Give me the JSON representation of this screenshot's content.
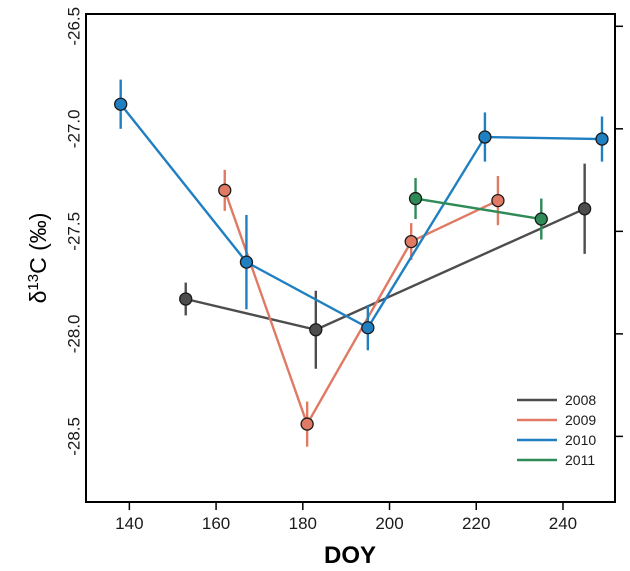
{
  "chart_data": {
    "type": "line",
    "xlabel": "DOY",
    "ylabel": {
      "prefix": "δ",
      "sup": "13",
      "suffix": "C (‰)"
    },
    "xlim": [
      130,
      252
    ],
    "ylim": [
      -28.82,
      -26.44
    ],
    "x_ticks": [
      140,
      160,
      180,
      200,
      220,
      240
    ],
    "x_tick_labels": [
      "140",
      "160",
      "180",
      "200",
      "220",
      "240"
    ],
    "y_ticks": [
      -26.5,
      -27.0,
      -27.5,
      -28.0,
      -28.5
    ],
    "y_tick_labels": [
      "-26.5",
      "-27.0",
      "-27.5",
      "-28.0",
      "-28.5"
    ],
    "grid": false,
    "legend_position": "bottom-right",
    "series": [
      {
        "name": "2008",
        "color": "#4d4d4d",
        "points": [
          {
            "x": 153,
            "y": -27.83,
            "err": 0.08
          },
          {
            "x": 183,
            "y": -27.98,
            "err": 0.19
          },
          {
            "x": 245,
            "y": -27.39,
            "err": 0.22
          }
        ]
      },
      {
        "name": "2009",
        "color": "#e07a64",
        "points": [
          {
            "x": 162,
            "y": -27.3,
            "err": 0.1
          },
          {
            "x": 181,
            "y": -28.44,
            "err": 0.11
          },
          {
            "x": 205,
            "y": -27.55,
            "err": 0.09
          },
          {
            "x": 225,
            "y": -27.35,
            "err": 0.12
          }
        ]
      },
      {
        "name": "2010",
        "color": "#1f7fc1",
        "points": [
          {
            "x": 138,
            "y": -26.88,
            "err": 0.12
          },
          {
            "x": 167,
            "y": -27.65,
            "err": 0.23
          },
          {
            "x": 195,
            "y": -27.97,
            "err": 0.11
          },
          {
            "x": 222,
            "y": -27.04,
            "err": 0.12
          },
          {
            "x": 249,
            "y": -27.05,
            "err": 0.11
          }
        ]
      },
      {
        "name": "2011",
        "color": "#2e8b57",
        "points": [
          {
            "x": 206,
            "y": -27.34,
            "err": 0.1
          },
          {
            "x": 235,
            "y": -27.44,
            "err": 0.1
          }
        ]
      }
    ]
  }
}
